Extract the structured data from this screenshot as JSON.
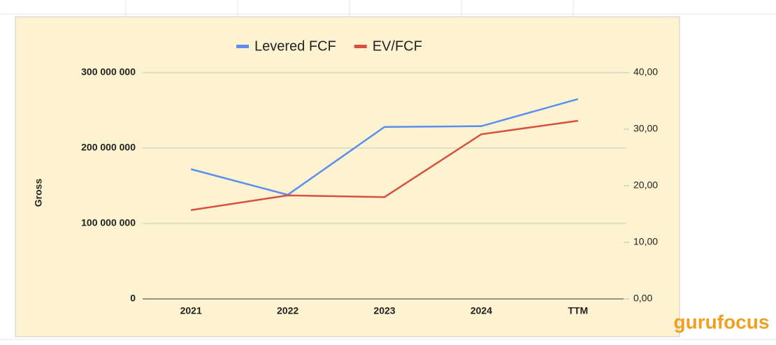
{
  "chart_data": {
    "type": "line",
    "categories": [
      "2021",
      "2022",
      "2023",
      "2024",
      "TTM"
    ],
    "series": [
      {
        "name": "Levered FCF",
        "color": "#5b8def",
        "values": [
          172000000,
          138000000,
          228000000,
          229000000,
          265000000
        ]
      },
      {
        "name": "EV/FCF",
        "color": "#d9503f",
        "axis": "y2",
        "values": [
          15.7,
          18.3,
          18.0,
          29.1,
          31.5
        ]
      }
    ],
    "y_label": "Gross",
    "ylim": [
      0,
      300000000
    ],
    "yticks": [
      0,
      {
        "value": 100000000,
        "label": "100 000 000"
      },
      {
        "value": 200000000,
        "label": "200 000 000"
      },
      {
        "value": 300000000,
        "label": "300 000 000"
      }
    ],
    "y2lim": [
      0,
      40
    ],
    "y2ticks": [
      {
        "value": 0,
        "label": "0,00"
      },
      {
        "value": 10,
        "label": "10,00"
      },
      {
        "value": 20,
        "label": "20,00"
      },
      {
        "value": 30,
        "label": "30,00"
      },
      {
        "value": 40,
        "label": "40,00"
      }
    ],
    "grid": true,
    "legend": "top",
    "watermark": "gurufocus"
  }
}
